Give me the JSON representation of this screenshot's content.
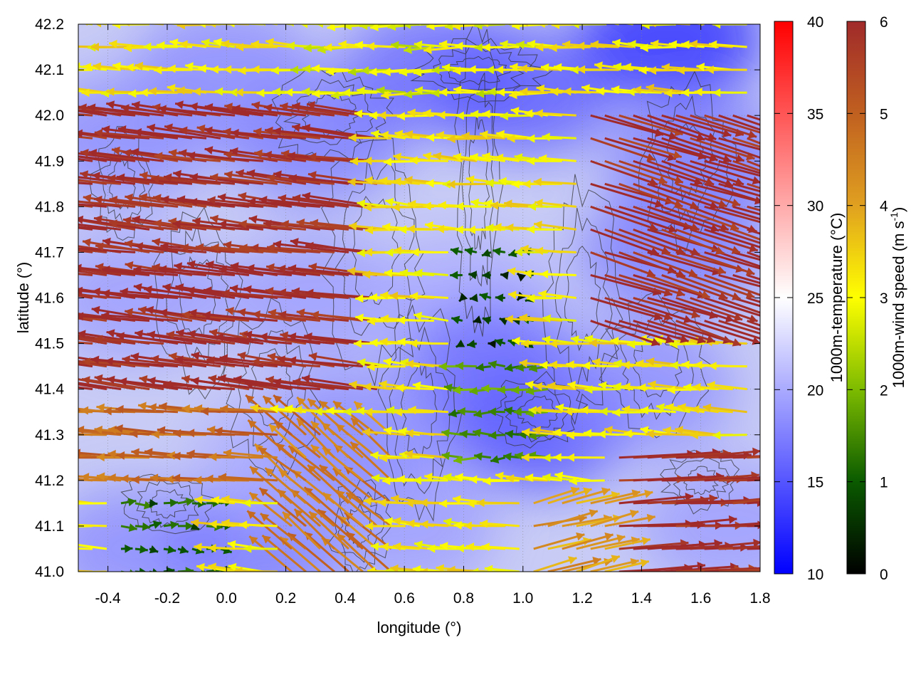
{
  "chart_data": {
    "type": "heatmap",
    "xlabel": "longitude (°)",
    "ylabel": "latitude (°)",
    "xlim": [
      -0.5,
      1.8
    ],
    "ylim": [
      41.0,
      42.2
    ],
    "x_ticks": [
      -0.4,
      -0.2,
      0.0,
      0.2,
      0.4,
      0.6,
      0.8,
      1.0,
      1.2,
      1.4,
      1.6,
      1.8
    ],
    "x_tick_labels": [
      "-0.4",
      "-0.2",
      "0.0",
      "0.2",
      "0.4",
      "0.6",
      "0.8",
      "1.0",
      "1.2",
      "1.4",
      "1.6",
      "1.8"
    ],
    "y_ticks": [
      41.0,
      41.1,
      41.2,
      41.3,
      41.4,
      41.5,
      41.6,
      41.7,
      41.8,
      41.9,
      42.0,
      42.1,
      42.2
    ],
    "y_tick_labels": [
      "41.0",
      "41.1",
      "41.2",
      "41.3",
      "41.4",
      "41.5",
      "41.6",
      "41.7",
      "41.8",
      "41.9",
      "42.0",
      "42.1",
      "42.2"
    ],
    "grid": true,
    "temperature_colorbar": {
      "label": "1000m-temperature (°C)",
      "range": [
        10,
        40
      ],
      "ticks": [
        10,
        15,
        20,
        25,
        30,
        35,
        40
      ],
      "tick_labels": [
        "10",
        "15",
        "20",
        "25",
        "30",
        "35",
        "40"
      ],
      "colors": [
        "#0000ff",
        "#ffffff",
        "#ff0000"
      ]
    },
    "wind_colorbar": {
      "label": "1000m-wind speed (m s",
      "label_superscript": "-1",
      "label_end": ")",
      "range": [
        0,
        6
      ],
      "ticks": [
        0,
        1,
        2,
        3,
        4,
        5,
        6
      ],
      "tick_labels": [
        "0",
        "1",
        "2",
        "3",
        "4",
        "5",
        "6"
      ],
      "colors": [
        "#000000",
        "#0a5a00",
        "#7dbb00",
        "#ffff00",
        "#e0a020",
        "#c06020",
        "#a02a2a"
      ]
    },
    "temperature_field": [
      {
        "lon": -0.3,
        "lat": 41.05,
        "temp": 18
      },
      {
        "lon": 0.1,
        "lat": 41.05,
        "temp": 17
      },
      {
        "lon": 0.6,
        "lat": 41.1,
        "temp": 19
      },
      {
        "lon": 0.2,
        "lat": 41.25,
        "temp": 20
      },
      {
        "lon": -0.3,
        "lat": 41.6,
        "temp": 19
      },
      {
        "lon": 0.3,
        "lat": 41.6,
        "temp": 19
      },
      {
        "lon": 0.8,
        "lat": 41.6,
        "temp": 20
      },
      {
        "lon": 1.05,
        "lat": 41.32,
        "temp": 14
      },
      {
        "lon": 0.9,
        "lat": 41.45,
        "temp": 16
      },
      {
        "lon": 1.4,
        "lat": 41.4,
        "temp": 18
      },
      {
        "lon": 1.5,
        "lat": 41.7,
        "temp": 17
      },
      {
        "lon": 0.3,
        "lat": 41.95,
        "temp": 17
      },
      {
        "lon": 0.7,
        "lat": 42.1,
        "temp": 16
      },
      {
        "lon": 1.0,
        "lat": 42.05,
        "temp": 15
      },
      {
        "lon": 1.5,
        "lat": 42.17,
        "temp": 12
      },
      {
        "lon": 1.6,
        "lat": 41.9,
        "temp": 17
      },
      {
        "lon": 0.0,
        "lat": 42.1,
        "temp": 18
      },
      {
        "lon": -0.35,
        "lat": 41.95,
        "temp": 18
      },
      {
        "lon": 1.7,
        "lat": 41.1,
        "temp": 19
      },
      {
        "lon": 0.45,
        "lat": 41.3,
        "temp": 18
      }
    ],
    "wind_zones": [
      {
        "lon": [
          -0.5,
          0.55
        ],
        "lat": [
          41.35,
          42.0
        ],
        "u": -5.9,
        "v": 0.7
      },
      {
        "lon": [
          -0.5,
          0.2
        ],
        "lat": [
          41.15,
          41.35
        ],
        "u": -4.8,
        "v": 0.3
      },
      {
        "lon": [
          0.2,
          0.6
        ],
        "lat": [
          41.0,
          41.3
        ],
        "u": -3.5,
        "v": 3.0
      },
      {
        "lon": [
          1.2,
          1.8
        ],
        "lat": [
          41.5,
          42.0
        ],
        "u": 5.6,
        "v": -1.8
      },
      {
        "lon": [
          1.3,
          1.8
        ],
        "lat": [
          41.0,
          41.25
        ],
        "u": 5.9,
        "v": 0.3
      },
      {
        "lon": [
          1.0,
          1.3
        ],
        "lat": [
          41.0,
          41.15
        ],
        "u": 4.0,
        "v": 1.0
      },
      {
        "lon": [
          0.75,
          1.05
        ],
        "lat": [
          41.45,
          41.7
        ],
        "u": -0.6,
        "v": 0.0
      },
      {
        "lon": [
          0.75,
          1.1
        ],
        "lat": [
          41.2,
          41.45
        ],
        "u": -1.6,
        "v": 0.0
      },
      {
        "lon": [
          -0.4,
          0.0
        ],
        "lat": [
          41.0,
          41.15
        ],
        "u": 1.0,
        "v": 0.0
      },
      {
        "lon": [
          0.3,
          1.1
        ],
        "lat": [
          42.0,
          42.2
        ],
        "u": -2.8,
        "v": 0.0
      }
    ],
    "wind_default": {
      "u": -3.2,
      "v": 0.2
    }
  }
}
